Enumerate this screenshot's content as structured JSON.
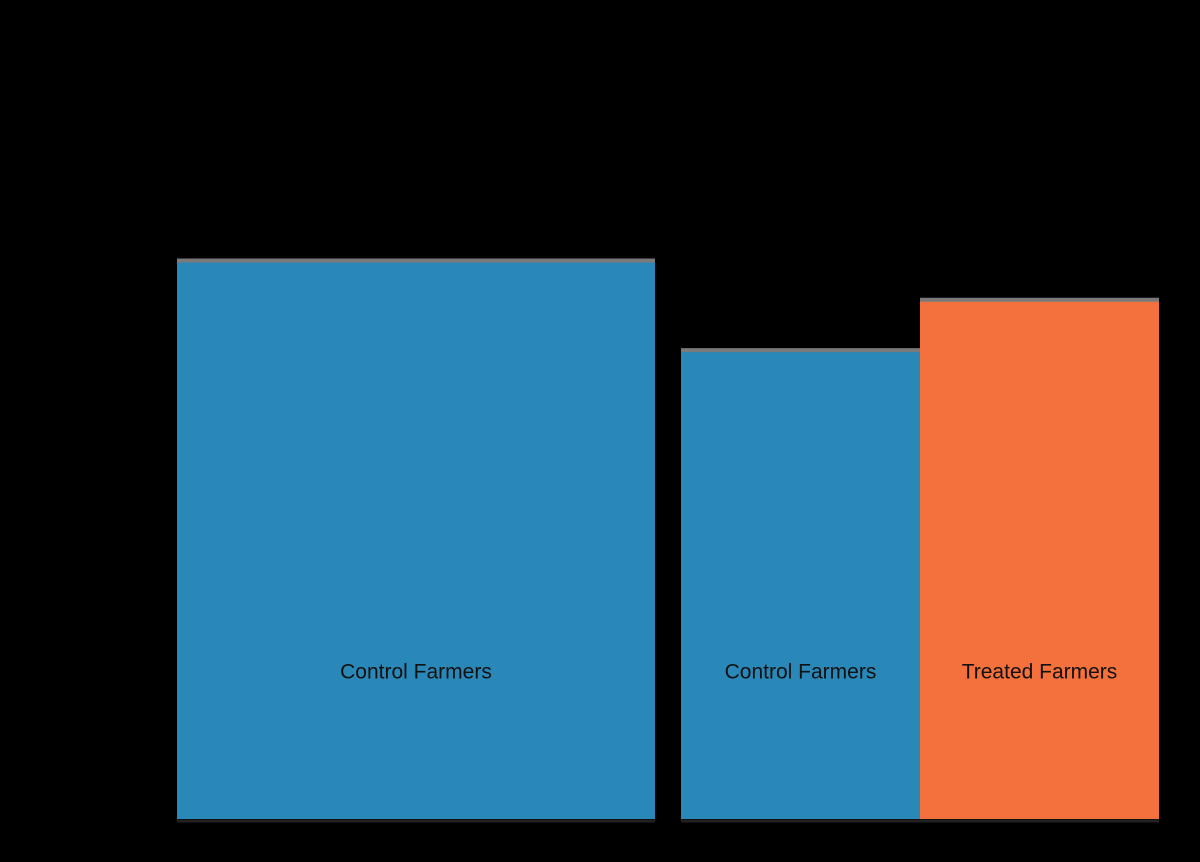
{
  "chart_data": {
    "type": "bar",
    "title": "",
    "xlabel": "",
    "ylabel": "",
    "ylim": [
      0,
      100
    ],
    "grid": false,
    "legend": "none",
    "groups": [
      {
        "bars": [
          {
            "label": "Control Farmers",
            "value": 100,
            "color": "#2a88b8"
          }
        ]
      },
      {
        "bars": [
          {
            "label": "Control Farmers",
            "value": 84,
            "color": "#2a88b8"
          },
          {
            "label": "Treated Farmers",
            "value": 93,
            "color": "#f4703d"
          }
        ]
      }
    ],
    "colors": {
      "background": "#000000",
      "control": "#2a88b8",
      "treated": "#f4703d",
      "bar_top_edge": "#7a7a7a",
      "label_text": "#111111"
    }
  }
}
